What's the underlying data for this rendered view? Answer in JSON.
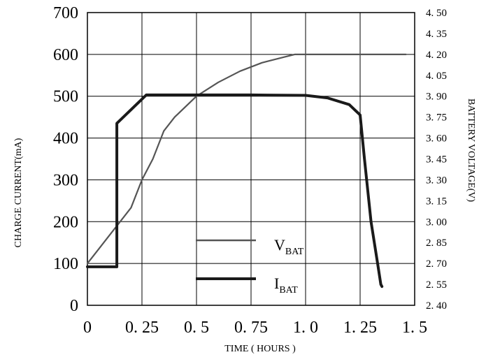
{
  "chart_data": {
    "type": "line",
    "xlabel": "TIME ( HOURS )",
    "ylabel_left": "CHARGE CURRENT(mA)",
    "ylabel_right": "BATTERY VOLTAGE(V)",
    "x_ticks": [
      "0",
      "0. 25",
      "0. 5",
      "0. 75",
      "1. 0",
      "1. 25",
      "1. 5"
    ],
    "x_tick_values": [
      0,
      0.25,
      0.5,
      0.75,
      1.0,
      1.25,
      1.5
    ],
    "xlim": [
      0,
      1.5
    ],
    "y_left_ticks": [
      "0",
      "100",
      "200",
      "300",
      "400",
      "500",
      "600",
      "700"
    ],
    "y_left_tick_values": [
      0,
      100,
      200,
      300,
      400,
      500,
      600,
      700
    ],
    "ylim_left": [
      0,
      700
    ],
    "y_right_ticks": [
      "2. 40",
      "2. 55",
      "2. 70",
      "2. 85",
      "3. 00",
      "3. 15",
      "3. 30",
      "3. 45",
      "3. 60",
      "3. 75",
      "3. 90",
      "4. 05",
      "4. 20",
      "4. 35",
      "4. 50"
    ],
    "y_right_tick_values": [
      2.4,
      2.55,
      2.7,
      2.85,
      3.0,
      3.15,
      3.3,
      3.45,
      3.6,
      3.75,
      3.9,
      4.05,
      4.2,
      4.35,
      4.5
    ],
    "ylim_right": [
      2.4,
      4.5
    ],
    "grid": true,
    "legend_position": "bottom-center",
    "series": [
      {
        "name": "V",
        "name_sub": "BAT",
        "axis": "right",
        "color": "#555555",
        "x": [
          0,
          0.05,
          0.1,
          0.15,
          0.2,
          0.25,
          0.3,
          0.35,
          0.4,
          0.5,
          0.6,
          0.7,
          0.8,
          0.9,
          0.95,
          1.0,
          1.1,
          1.2,
          1.3,
          1.4,
          1.46
        ],
        "y": [
          2.7,
          2.8,
          2.9,
          3.0,
          3.1,
          3.3,
          3.45,
          3.65,
          3.75,
          3.9,
          4.0,
          4.08,
          4.14,
          4.18,
          4.2,
          4.2,
          4.2,
          4.2,
          4.2,
          4.2,
          4.2
        ]
      },
      {
        "name": "I",
        "name_sub": "BAT",
        "axis": "left",
        "color": "#1a1a1a",
        "x": [
          0,
          0.135,
          0.135,
          0.27,
          0.5,
          0.75,
          1.0,
          1.1,
          1.2,
          1.25,
          1.27,
          1.3,
          1.33,
          1.345,
          1.35,
          1.35
        ],
        "y": [
          92,
          92,
          435,
          503,
          503,
          503,
          502,
          496,
          480,
          455,
          350,
          200,
          100,
          50,
          45,
          45
        ]
      }
    ]
  }
}
